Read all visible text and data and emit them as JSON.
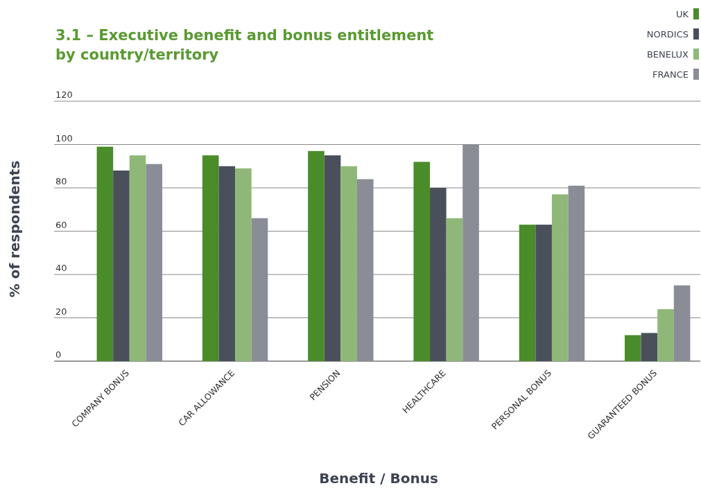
{
  "chart_data": {
    "type": "bar",
    "title": "3.1 – Executive benefit and bonus entitlement by country/territory",
    "xlabel": "Benefit / Bonus",
    "ylabel": "% of respondents",
    "categories": [
      "COMPANY BONUS",
      "CAR ALLOWANCE",
      "PENSION",
      "HEALTHCARE",
      "PERSONAL BONUS",
      "GUARANTEED BONUS"
    ],
    "series": [
      {
        "name": "UK",
        "color": "#4a8c2a",
        "values": [
          99,
          95,
          97,
          92,
          63,
          12
        ]
      },
      {
        "name": "NORDICS",
        "color": "#4a4f5c",
        "values": [
          88,
          90,
          95,
          80,
          63,
          13
        ]
      },
      {
        "name": "BENELUX",
        "color": "#8fb878",
        "values": [
          95,
          89,
          90,
          66,
          77,
          24
        ]
      },
      {
        "name": "FRANCE",
        "color": "#8a8d96",
        "values": [
          91,
          66,
          84,
          100,
          81,
          35
        ]
      }
    ],
    "ylim": [
      0,
      120
    ],
    "yticks": [
      0,
      20,
      40,
      60,
      80,
      100,
      120
    ],
    "grid": "y",
    "legend": "top right"
  }
}
